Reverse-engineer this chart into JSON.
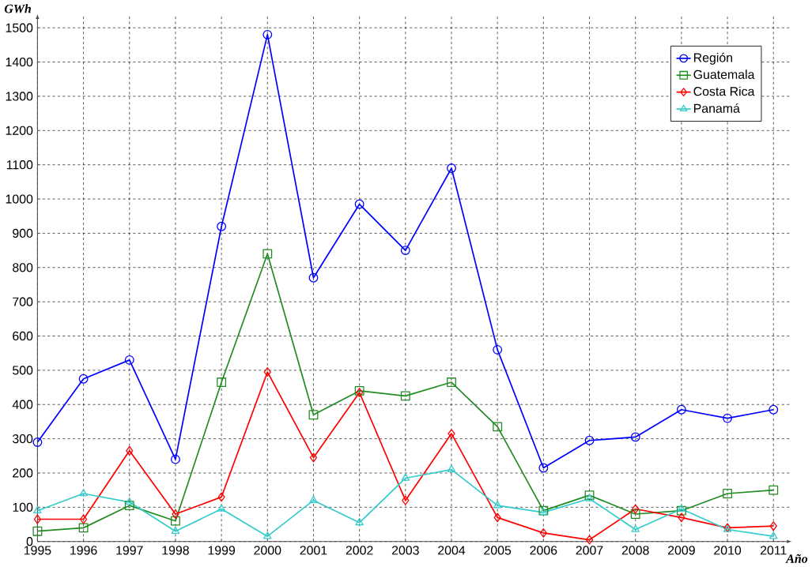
{
  "chart_data": {
    "type": "line",
    "xlabel": "Año",
    "ylabel": "GWh",
    "x": [
      1995,
      1996,
      1997,
      1998,
      1999,
      2000,
      2001,
      2002,
      2003,
      2004,
      2005,
      2006,
      2007,
      2008,
      2009,
      2010,
      2011
    ],
    "series": [
      {
        "name": "Región",
        "color": "#0000ff",
        "marker": "circle",
        "values": [
          290,
          475,
          530,
          240,
          920,
          1480,
          770,
          985,
          850,
          1090,
          560,
          215,
          295,
          305,
          385,
          360,
          385
        ]
      },
      {
        "name": "Guatemala",
        "color": "#228b22",
        "marker": "square",
        "values": [
          30,
          40,
          105,
          60,
          465,
          840,
          370,
          440,
          425,
          465,
          335,
          90,
          135,
          80,
          90,
          140,
          150
        ]
      },
      {
        "name": "Costa Rica",
        "color": "#ff0000",
        "marker": "diamond",
        "values": [
          65,
          65,
          265,
          80,
          130,
          495,
          245,
          435,
          120,
          315,
          70,
          25,
          5,
          95,
          70,
          40,
          45
        ]
      },
      {
        "name": "Panamá",
        "color": "#33cccc",
        "marker": "triangle",
        "values": [
          90,
          140,
          115,
          30,
          95,
          15,
          120,
          55,
          185,
          210,
          105,
          85,
          125,
          35,
          95,
          35,
          15
        ]
      }
    ],
    "xlim": [
      1995,
      2011.4
    ],
    "ylim": [
      0,
      1540
    ],
    "xticks": [
      1995,
      1996,
      1997,
      1998,
      1999,
      2000,
      2001,
      2002,
      2003,
      2004,
      2005,
      2006,
      2007,
      2008,
      2009,
      2010,
      2011
    ],
    "yticks": [
      0,
      100,
      200,
      300,
      400,
      500,
      600,
      700,
      800,
      900,
      1000,
      1100,
      1200,
      1300,
      1400,
      1500
    ],
    "grid": true,
    "legend": "top right",
    "line_style": "solid"
  }
}
